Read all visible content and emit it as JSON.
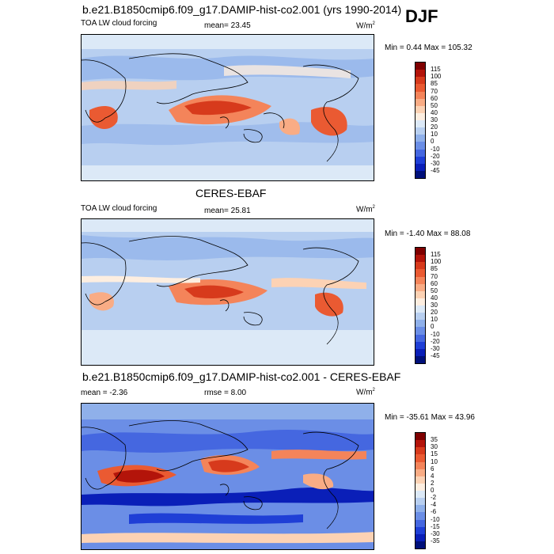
{
  "header": {
    "case_title": "b.e21.B1850cmip6.f09_g17.DAMIP-hist-co2.001 (yrs 1990-2014)",
    "season": "DJF"
  },
  "panel1": {
    "left_label": "TOA LW cloud forcing",
    "mean_label": "mean=  23.45",
    "units": "W/m",
    "units_sup": "2",
    "minmax": "Min =   0.44 Max = 105.32"
  },
  "panel2": {
    "title": "CERES-EBAF",
    "left_label": "TOA LW cloud forcing",
    "mean_label": "mean=  25.81",
    "units": "W/m",
    "units_sup": "2",
    "minmax": "Min =  -1.40 Max =  88.08"
  },
  "panel3": {
    "title": "b.e21.B1850cmip6.f09_g17.DAMIP-hist-co2.001 - CERES-EBAF",
    "mean_label": "mean =  -2.36",
    "rmse_label": "rmse =   8.00",
    "units": "W/m",
    "units_sup": "2",
    "minmax": "Min = -35.61 Max =  43.96"
  },
  "colorbar_abs": {
    "ticks": [
      "115",
      "100",
      "85",
      "70",
      "60",
      "50",
      "40",
      "30",
      "20",
      "10",
      "0",
      "-10",
      "-20",
      "-30",
      "-45"
    ],
    "colors": [
      "#7f0000",
      "#b3140a",
      "#d73a1c",
      "#ea5a32",
      "#f4845a",
      "#f9ac85",
      "#fcd2b4",
      "#fdeee0",
      "#dce9f7",
      "#b8cff0",
      "#8fb0ea",
      "#6b8ee6",
      "#4567e0",
      "#1f3fd6",
      "#0a1fb8",
      "#00107a"
    ]
  },
  "colorbar_diff": {
    "ticks": [
      "35",
      "30",
      "15",
      "10",
      "6",
      "4",
      "2",
      "0",
      "-2",
      "-4",
      "-6",
      "-10",
      "-15",
      "-30",
      "-35"
    ],
    "colors": [
      "#7f0000",
      "#b3140a",
      "#d73a1c",
      "#ea5a32",
      "#f4845a",
      "#f9ac85",
      "#fcd2b4",
      "#fdeee0",
      "#dce9f7",
      "#b8cff0",
      "#8fb0ea",
      "#6b8ee6",
      "#4567e0",
      "#1f3fd6",
      "#0a1fb8",
      "#00107a"
    ]
  }
}
